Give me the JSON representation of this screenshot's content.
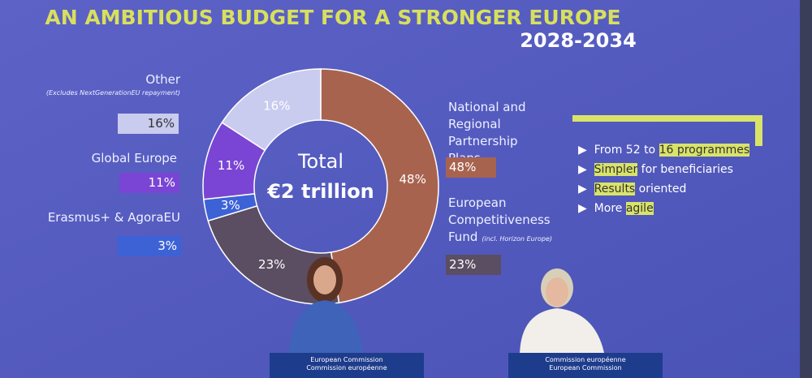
{
  "chart_data": {
    "type": "donut",
    "title": "AN AMBITIOUS BUDGET FOR A STRONGER EUROPE",
    "subtitle": "2028-2034",
    "center_label": "Total",
    "center_value": "€2 trillion",
    "categories": [
      "National and Regional Partnership Plans",
      "European Competitiveness Fund",
      "Erasmus+ & AgoraEU",
      "Global Europe",
      "Other"
    ],
    "notes": [
      null,
      "(incl. Horizon Europe)",
      null,
      null,
      "(Excludes NextGenerationEU repayment)"
    ],
    "values": [
      48,
      23,
      3,
      11,
      16
    ],
    "value_labels": [
      "48%",
      "23%",
      "3%",
      "11%",
      "16%"
    ],
    "colors": [
      "#a8634f",
      "#5b4d62",
      "#3d62d6",
      "#7a45d4",
      "#c9cbef"
    ]
  },
  "callout": {
    "items": [
      [
        {
          "text": "From 52 to "
        },
        {
          "text": "16 programmes",
          "highlight": true
        }
      ],
      [
        {
          "text": "Simpler",
          "highlight": true
        },
        {
          "text": " for beneficiaries"
        }
      ],
      [
        {
          "text": "Results",
          "highlight": true
        },
        {
          "text": " oriented"
        }
      ],
      [
        {
          "text": "More "
        },
        {
          "text": "agile",
          "highlight": true
        }
      ]
    ]
  },
  "podiums": [
    [
      "European Commission",
      "Commission européenne"
    ],
    [
      "Commission européenne",
      "European Commission"
    ]
  ]
}
